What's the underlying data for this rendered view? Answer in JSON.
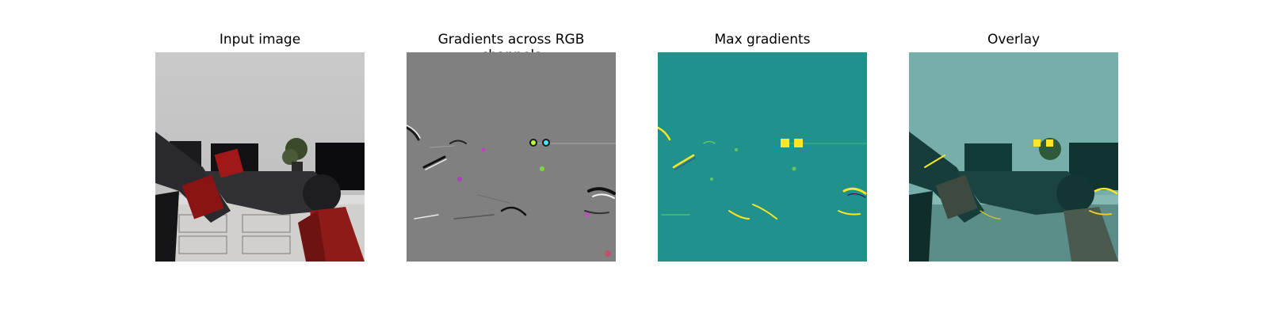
{
  "panels": [
    {
      "title": "Input image"
    },
    {
      "title": "Gradients across RGB channels"
    },
    {
      "title": "Max gradients"
    },
    {
      "title": "Overlay"
    }
  ],
  "colors": {
    "wall": "#c6c6c6",
    "grad_bg": "#808080",
    "max_bg": "#21918c",
    "highlight": "#fde725",
    "overlay_tint": "#2a9d97"
  }
}
